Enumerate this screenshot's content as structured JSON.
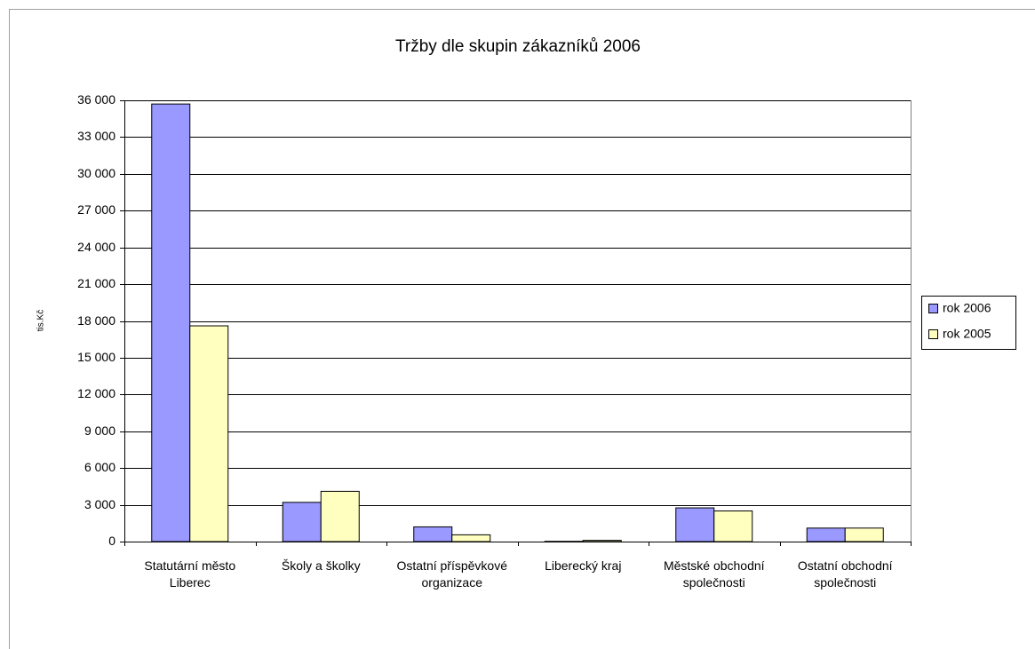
{
  "chart_data": {
    "type": "bar",
    "title": "Tržby dle skupin zákazníků 2006",
    "y_label": "tis.Kč",
    "categories": [
      "Statutární město Liberec",
      "Školy a školky",
      "Ostatní příspěvkové organizace",
      "Liberecký kraj",
      "Městské obchodní společnosti",
      "Ostatní obchodní společnosti"
    ],
    "series": [
      {
        "name": "rok 2006",
        "color": "#9999ff",
        "values": [
          35700,
          3200,
          1200,
          20,
          2750,
          1100
        ]
      },
      {
        "name": "rok 2005",
        "color": "#ffffc0",
        "values": [
          17600,
          4100,
          550,
          100,
          2500,
          1100
        ]
      }
    ],
    "ylim": [
      0,
      36000
    ],
    "yticks": [
      0,
      {
        "value": 3000,
        "label": "3 000"
      },
      {
        "value": 6000,
        "label": "6 000"
      },
      {
        "value": 9000,
        "label": "9 000"
      },
      {
        "value": 12000,
        "label": "12 000"
      },
      {
        "value": 15000,
        "label": "15 000"
      },
      {
        "value": 18000,
        "label": "18 000"
      },
      {
        "value": 21000,
        "label": "21 000"
      },
      {
        "value": 24000,
        "label": "24 000"
      },
      {
        "value": 27000,
        "label": "27 000"
      },
      {
        "value": 30000,
        "label": "30 000"
      },
      {
        "value": 33000,
        "label": "33 000"
      },
      {
        "value": 36000,
        "label": "36 000"
      }
    ],
    "grid": true,
    "legend": "right"
  }
}
